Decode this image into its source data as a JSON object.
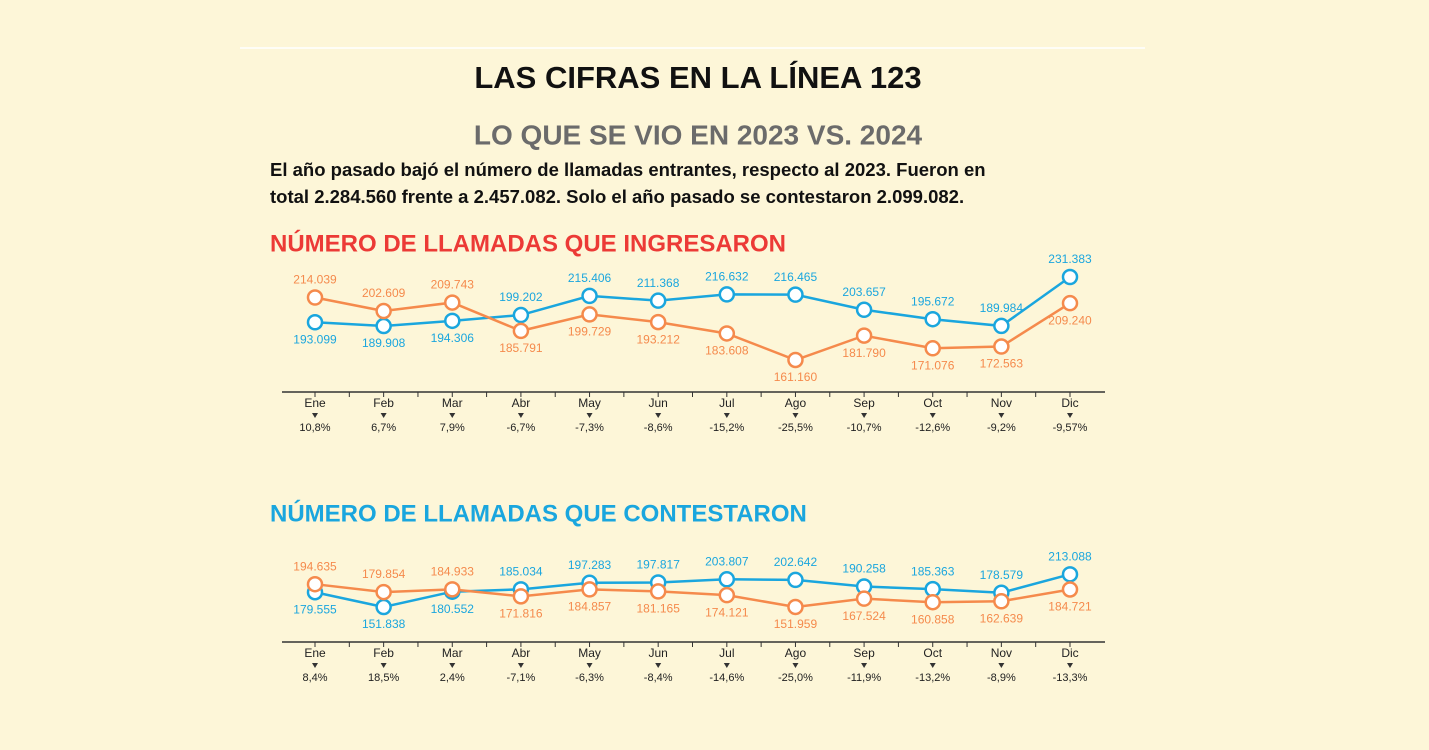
{
  "title": "LAS CIFRAS EN LA LÍNEA 123",
  "subtitle": "LO QUE SE VIO EN 2023 VS. 2024",
  "description": [
    "El año pasado bajó el número de llamadas entrantes, respecto al 2023. Fueron en",
    "total 2.284.560 frente a 2.457.082. Solo el año pasado se contestaron 2.099.082."
  ],
  "chart_data": [
    {
      "type": "line",
      "title": "NÚMERO DE LLAMADAS QUE INGRESARON",
      "title_color": "#ec3a36",
      "categories": [
        "Ene",
        "Feb",
        "Mar",
        "Abr",
        "May",
        "Jun",
        "Jul",
        "Ago",
        "Sep",
        "Oct",
        "Nov",
        "Dic"
      ],
      "ylim": [
        140000,
        250000
      ],
      "series": [
        {
          "color": "#1aa6de",
          "values": [
            193099,
            189908,
            194306,
            199202,
            215406,
            211368,
            216632,
            216465,
            203657,
            195672,
            189984,
            231383
          ],
          "value_labels": [
            "193.099",
            "189.908",
            "194.306",
            "199.202",
            "215.406",
            "211.368",
            "216.632",
            "216.465",
            "203.657",
            "195.672",
            "189.984",
            "231.383"
          ]
        },
        {
          "color": "#f58a4c",
          "values": [
            214039,
            202609,
            209743,
            185791,
            199729,
            193212,
            183608,
            161160,
            181790,
            171076,
            172563,
            209240
          ],
          "value_labels": [
            "214.039",
            "202.609",
            "209.743",
            "185.791",
            "199.729",
            "193.212",
            "183.608",
            "161.160",
            "181.790",
            "171.076",
            "172.563",
            "209.240"
          ]
        }
      ],
      "changes": [
        {
          "value": 10.8,
          "label": "10,8%"
        },
        {
          "value": 6.7,
          "label": "6,7%"
        },
        {
          "value": 7.9,
          "label": "7,9%"
        },
        {
          "value": -6.7,
          "label": "-6,7%"
        },
        {
          "value": -7.3,
          "label": "-7,3%"
        },
        {
          "value": -8.6,
          "label": "-8,6%"
        },
        {
          "value": -15.2,
          "label": "-15,2%"
        },
        {
          "value": -25.5,
          "label": "-25,5%"
        },
        {
          "value": -10.7,
          "label": "-10,7%"
        },
        {
          "value": -12.6,
          "label": "-12,6%"
        },
        {
          "value": -9.2,
          "label": "-9,2%"
        },
        {
          "value": -9.57,
          "label": "-9,57%"
        }
      ]
    },
    {
      "type": "line",
      "title": "NÚMERO DE LLAMADAS QUE CONTESTARON",
      "title_color": "#1aa6de",
      "categories": [
        "Ene",
        "Feb",
        "Mar",
        "Abr",
        "May",
        "Jun",
        "Jul",
        "Ago",
        "Sep",
        "Oct",
        "Nov",
        "Dic"
      ],
      "ylim": [
        90000,
        240000
      ],
      "series": [
        {
          "color": "#1aa6de",
          "values": [
            179555,
            151838,
            180552,
            185034,
            197283,
            197817,
            203807,
            202642,
            190258,
            185363,
            178579,
            213088
          ],
          "value_labels": [
            "179.555",
            "151.838",
            "180.552",
            "185.034",
            "197.283",
            "197.817",
            "203.807",
            "202.642",
            "190.258",
            "185.363",
            "178.579",
            "213.088"
          ]
        },
        {
          "color": "#f58a4c",
          "values": [
            194635,
            179854,
            184933,
            171816,
            184857,
            181165,
            174121,
            151959,
            167524,
            160858,
            162639,
            184721
          ],
          "value_labels": [
            "194.635",
            "179.854",
            "184.933",
            "171.816",
            "184.857",
            "181.165",
            "174.121",
            "151.959",
            "167.524",
            "160.858",
            "162.639",
            "184.721"
          ]
        }
      ],
      "changes": [
        {
          "value": 8.4,
          "label": "8,4%"
        },
        {
          "value": 18.5,
          "label": "18,5%"
        },
        {
          "value": 2.4,
          "label": "2,4%"
        },
        {
          "value": -7.1,
          "label": "-7,1%"
        },
        {
          "value": -6.3,
          "label": "-6,3%"
        },
        {
          "value": -8.4,
          "label": "-8,4%"
        },
        {
          "value": -14.6,
          "label": "-14,6%"
        },
        {
          "value": -25.0,
          "label": "-25,0%"
        },
        {
          "value": -11.9,
          "label": "-11,9%"
        },
        {
          "value": -13.2,
          "label": "-13,2%"
        },
        {
          "value": -8.9,
          "label": "-8,9%"
        },
        {
          "value": -13.3,
          "label": "-13,3%"
        }
      ]
    }
  ]
}
